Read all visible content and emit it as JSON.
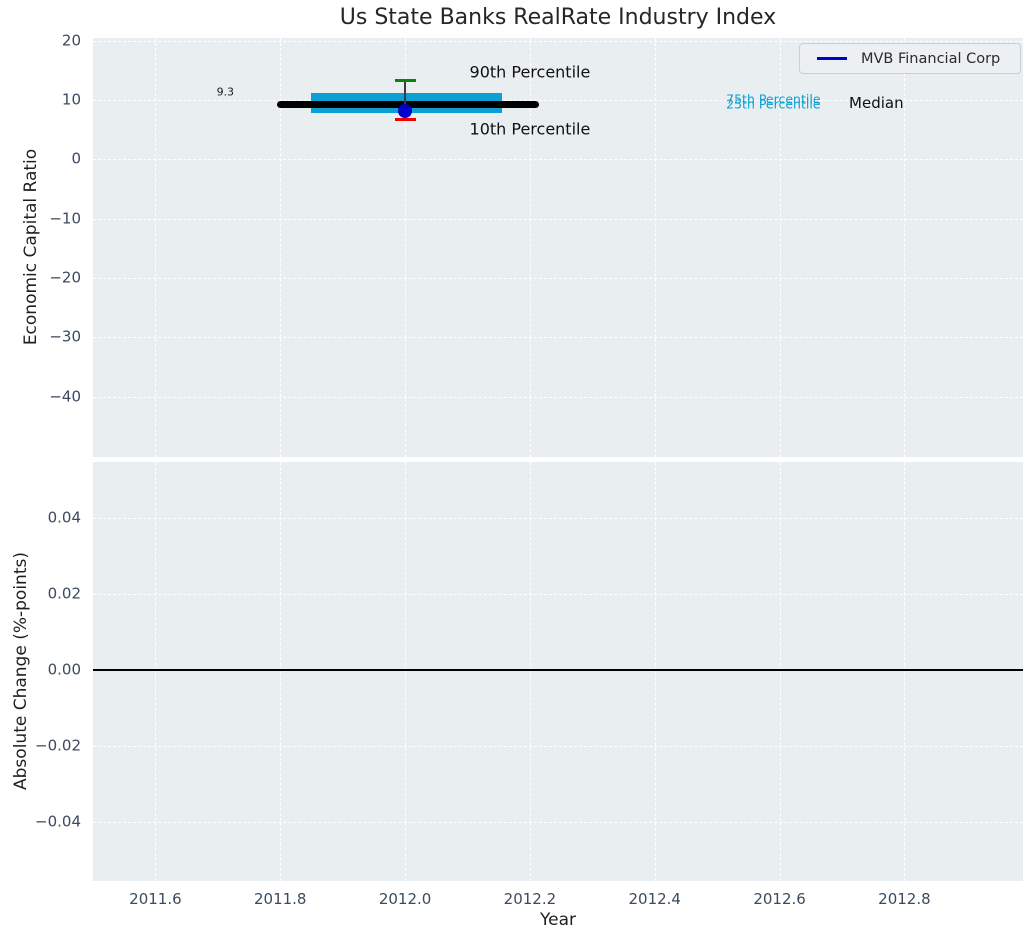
{
  "chart_data": [
    {
      "type": "line",
      "title": "Us State Banks RealRate Industry Index",
      "ylabel": "Economic Capital Ratio",
      "xlabel": "",
      "xlim": [
        2011.5,
        2012.99
      ],
      "ylim": [
        -50.2,
        20.5
      ],
      "grid": true,
      "background_color": "#e9eef0",
      "xticks": {
        "values": [
          2011.6,
          2011.8,
          2012.0,
          2012.2,
          2012.4,
          2012.6,
          2012.8
        ],
        "labels": [
          "2011.6",
          "2011.8",
          "2012.0",
          "2012.2",
          "2012.4",
          "2012.6",
          "2012.8"
        ],
        "show_labels": false
      },
      "yticks": {
        "values": [
          20,
          10,
          0,
          -10,
          -20,
          -30,
          -40
        ],
        "labels": [
          "20",
          "10",
          "0",
          "−10",
          "−20",
          "−30",
          "−40"
        ]
      },
      "legend": {
        "position": "upper right",
        "entries": [
          {
            "label": "MVB Financial Corp",
            "color": "#0000cd",
            "marker": "line"
          }
        ]
      },
      "series": {
        "company_point": {
          "name": "MVB Financial Corp",
          "x": 2012.0,
          "y": 8.1,
          "color": "#0000cd"
        },
        "median_line": {
          "name": "Median",
          "value": 9.3,
          "x_start": 2011.8,
          "x_end": 2012.21,
          "color": "#000000"
        },
        "iqr_band": {
          "name": "25th-75th Percentile Band",
          "p25": 7.9,
          "p75": 11.3,
          "x_start": 2011.85,
          "x_end": 2012.155,
          "color": "#0c9fd4"
        },
        "p90_cap": {
          "name": "90th Percentile",
          "x": 2012.0,
          "value": 13.4,
          "color": "#078507"
        },
        "p10_cap": {
          "name": "10th Percentile",
          "x": 2012.0,
          "value": 6.8,
          "color": "#f20000"
        },
        "connector_color": "#3c3c3c"
      },
      "annotations": [
        {
          "text": "9.3",
          "x": 2011.712,
          "y": 11.35,
          "color": "#1a1a1a",
          "font_size": 11
        },
        {
          "text": "90th Percentile",
          "x": 2012.2,
          "y": 14.8,
          "color": "#111111",
          "font_size": 16
        },
        {
          "text": "10th Percentile",
          "x": 2012.2,
          "y": 5.2,
          "color": "#111111",
          "font_size": 16
        },
        {
          "text": "75th Percentile",
          "x": 2012.59,
          "y": 10.25,
          "color": "#0c9fd4",
          "font_size": 12.5
        },
        {
          "text": "25th Percentile",
          "x": 2012.59,
          "y": 9.4,
          "color": "#0c9fd4",
          "font_size": 12.5
        },
        {
          "text": "Median",
          "x": 2012.755,
          "y": 9.5,
          "color": "#111111",
          "font_size": 15
        }
      ]
    },
    {
      "type": "line",
      "title": "",
      "ylabel": "Absolute Change (%-points)",
      "xlabel": "Year",
      "xlim": [
        2011.5,
        2012.99
      ],
      "ylim": [
        -0.0555,
        0.0548
      ],
      "grid": true,
      "background_color": "#e9eef0",
      "xticks": {
        "values": [
          2011.6,
          2011.8,
          2012.0,
          2012.2,
          2012.4,
          2012.6,
          2012.8
        ],
        "labels": [
          "2011.6",
          "2011.8",
          "2012.0",
          "2012.2",
          "2012.4",
          "2012.6",
          "2012.8"
        ],
        "show_labels": true
      },
      "yticks": {
        "values": [
          0.04,
          0.02,
          0,
          -0.02,
          -0.04
        ],
        "labels": [
          "0.04",
          "0.02",
          "0.00",
          "−0.02",
          "−0.04"
        ]
      },
      "zero_line": {
        "y": 0,
        "color": "#000000"
      }
    }
  ]
}
